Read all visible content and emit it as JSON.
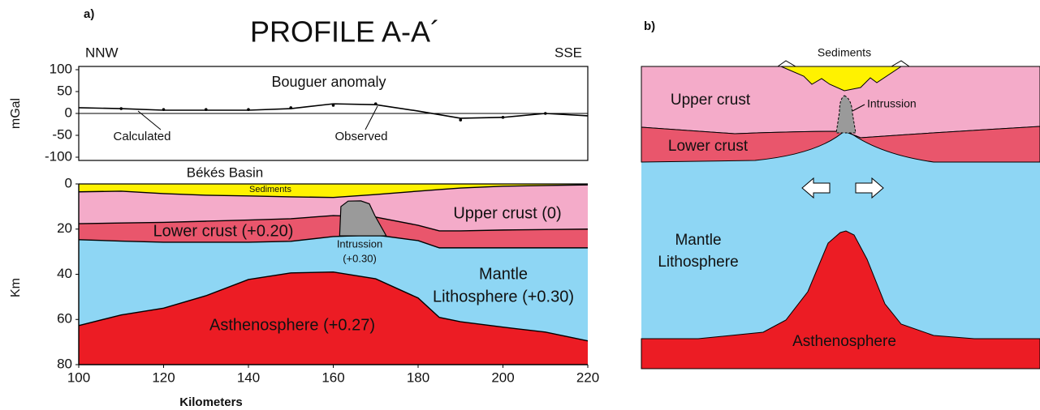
{
  "header": {
    "panel_a_label": "a)",
    "title": "PROFILE  A-A´",
    "left_end": "NNW",
    "right_end": "SSE"
  },
  "chart_data": [
    {
      "type": "line",
      "title": "Bouguer anomaly",
      "y_label": "mGal",
      "xlim": [
        100,
        220
      ],
      "ylim": [
        -100,
        100
      ],
      "yticks": [
        100,
        50,
        0,
        -50,
        -100
      ],
      "series": [
        {
          "name": "Calculated",
          "style": "line",
          "color": "#000000",
          "x": [
            100,
            110,
            120,
            130,
            140,
            150,
            160,
            170,
            180,
            190,
            200,
            210,
            220
          ],
          "values": [
            13,
            11,
            7.4,
            7.4,
            7.4,
            11,
            22,
            20,
            5.5,
            -11,
            -9,
            0,
            -5.5
          ]
        },
        {
          "name": "Observed",
          "style": "points",
          "color": "#000000",
          "x": [
            110,
            120,
            130,
            140,
            150,
            160,
            170,
            190,
            200,
            210
          ],
          "values": [
            11,
            9,
            9,
            9,
            13,
            18.5,
            22,
            -15,
            -9,
            0
          ]
        }
      ]
    },
    {
      "type": "section",
      "title": "Békés Basin",
      "y_label": "Km",
      "x_label": "Kilometers",
      "xlim": [
        100,
        220
      ],
      "ylim": [
        0,
        80
      ],
      "xticks": [
        100,
        120,
        140,
        160,
        180,
        200,
        220
      ],
      "yticks": [
        0,
        20,
        40,
        60,
        80
      ],
      "x": [
        100,
        110,
        120,
        130,
        140,
        150,
        160,
        170,
        180,
        185,
        190,
        200,
        210,
        220
      ],
      "boundaries": [
        {
          "values": [
            3.5,
            3.2,
            4.3,
            5,
            5.3,
            5.7,
            6,
            4.7,
            3.2,
            2.5,
            1.8,
            1,
            0.7,
            0.4
          ]
        },
        {
          "values": [
            17.6,
            17.3,
            17,
            16.5,
            16,
            15.4,
            14,
            14.7,
            18.3,
            20.8,
            20.8,
            20.4,
            20.2,
            20
          ]
        },
        {
          "values": [
            24.7,
            25.3,
            25.8,
            25.8,
            25.8,
            25.4,
            23.3,
            22.6,
            25.1,
            28.3,
            28.3,
            28.3,
            28.3,
            28.3
          ]
        },
        {
          "values": [
            62.7,
            58,
            55,
            49.5,
            42.3,
            39.4,
            39,
            42,
            50.5,
            59.1,
            61,
            63.4,
            65.6,
            69.5
          ]
        }
      ],
      "layers": [
        {
          "label": "Sediments",
          "color": "#fff200"
        },
        {
          "label": "Upper crust (0)",
          "color": "#f4abc9"
        },
        {
          "label": "Lower crust (+0.20)",
          "color": "#e9566c"
        },
        {
          "label": [
            "Mantle",
            "Lithosphere (+0.30)"
          ],
          "color": "#8ed6f4"
        },
        {
          "label": "Asthenosphere (+0.27)",
          "color": "#ec1c24"
        }
      ],
      "intrusion": {
        "label": [
          "Intrussion",
          "(+0.30)"
        ],
        "color": "#9a9a9a",
        "x": [
          161.5,
          161.8,
          163.5,
          166.5,
          168.5,
          169.8,
          172.5
        ],
        "values": [
          23,
          10,
          7.6,
          7.5,
          8.8,
          14,
          23
        ]
      }
    }
  ],
  "panel_b": {
    "label": "b)",
    "sediments": "Sediments",
    "upper_crust": "Upper crust",
    "lower_crust": "Lower crust",
    "intrusion": "Intrussion",
    "mantle": [
      "Mantle",
      "Lithosphere"
    ],
    "asthenosphere": "Asthenosphere"
  }
}
